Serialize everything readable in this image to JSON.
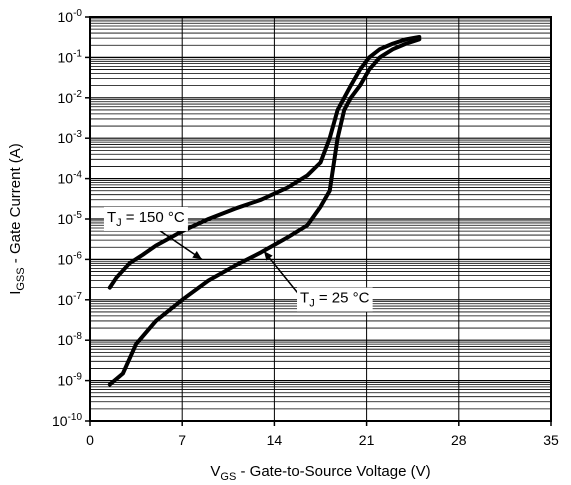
{
  "chart_data": {
    "type": "line",
    "title": "",
    "xlabel": {
      "main": "V",
      "sub": "GS",
      "rest": " - Gate-to-Source Voltage (V)"
    },
    "ylabel": {
      "main": "I",
      "sub": "GSS",
      "rest": " - Gate Current (A)"
    },
    "xlim": [
      0,
      35
    ],
    "ylim_log10": [
      -10,
      0
    ],
    "x_scale": "linear",
    "y_scale": "log",
    "grid": "horizontal minor and major",
    "x_ticks": [
      "0",
      "7",
      "14",
      "21",
      "28",
      "35"
    ],
    "y_ticks": [
      {
        "base": "10",
        "exp": "-0"
      },
      {
        "base": "10",
        "exp": "-1"
      },
      {
        "base": "10",
        "exp": "-2"
      },
      {
        "base": "10",
        "exp": "-3"
      },
      {
        "base": "10",
        "exp": "-4"
      },
      {
        "base": "10",
        "exp": "-5"
      },
      {
        "base": "10",
        "exp": "-6"
      },
      {
        "base": "10",
        "exp": "-7"
      },
      {
        "base": "10",
        "exp": "-8"
      },
      {
        "base": "10",
        "exp": "-9"
      },
      {
        "base": "10",
        "exp": "-10"
      }
    ],
    "series": [
      {
        "name": "TJ = 150 °C",
        "x": [
          1.5,
          2,
          3,
          4,
          5,
          7,
          9,
          11,
          13,
          15,
          16.5,
          17.5,
          18.2,
          18.8,
          19.3,
          19.8,
          20.5,
          21.2,
          22,
          23,
          24,
          25
        ],
        "y": [
          2e-07,
          3.5e-07,
          8e-07,
          1.3e-06,
          2.2e-06,
          5e-06,
          1e-05,
          1.8e-05,
          3e-05,
          6e-05,
          0.00012,
          0.00025,
          0.001,
          0.005,
          0.01,
          0.02,
          0.05,
          0.1,
          0.16,
          0.22,
          0.28,
          0.32
        ]
      },
      {
        "name": "TJ = 25 °C",
        "x": [
          1.5,
          2.5,
          3.5,
          5,
          7,
          9,
          11,
          13,
          15,
          16.5,
          17.5,
          18.2,
          18.8,
          19.3,
          19.8,
          20.5,
          21.2,
          22,
          23,
          24,
          25
        ],
        "y": [
          8e-10,
          1.5e-09,
          8e-09,
          3e-08,
          1e-07,
          3e-07,
          7e-07,
          1.5e-06,
          3.5e-06,
          7e-06,
          2e-05,
          5e-05,
          0.001,
          0.005,
          0.01,
          0.02,
          0.05,
          0.1,
          0.16,
          0.22,
          0.28
        ]
      }
    ],
    "annotations": [
      {
        "id": "tj150",
        "main": "T",
        "sub": "J",
        "rest": " = 150 °C",
        "anchor": [
          5,
          6e-06
        ],
        "target": [
          8.5,
          1e-06
        ]
      },
      {
        "id": "tj25",
        "main": "T",
        "sub": "J",
        "rest": " = 25 °C",
        "anchor": [
          16,
          1.2e-07
        ],
        "target": [
          13.2,
          1.6e-06
        ]
      }
    ]
  }
}
